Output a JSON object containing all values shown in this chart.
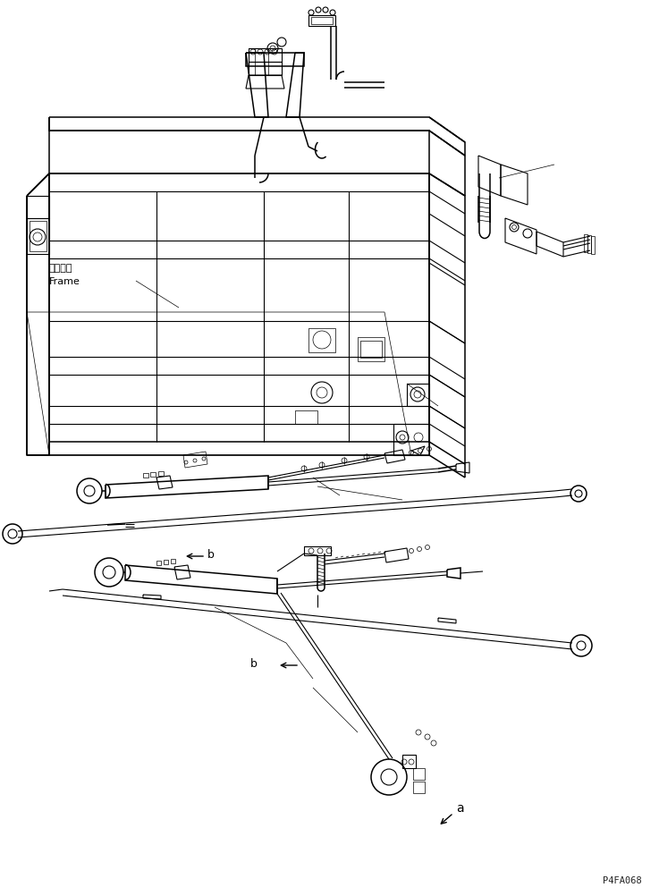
{
  "bg_color": "#ffffff",
  "line_color": "#000000",
  "fig_width": 7.37,
  "fig_height": 10.03,
  "dpi": 100,
  "watermark_text": "P4FA068",
  "label_frame_jp": "フレーム",
  "label_frame_en": "Frame",
  "label_a": "a",
  "label_b1": "b",
  "label_b2": "b"
}
